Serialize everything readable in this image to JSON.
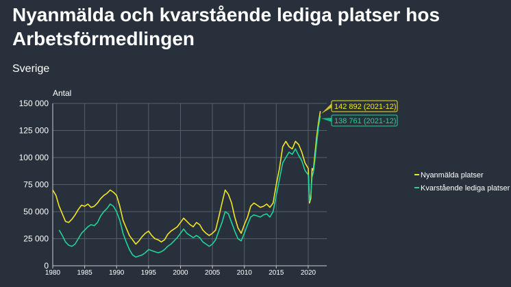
{
  "chart_data": {
    "type": "line",
    "title": "Nyanmälda och kvarstående lediga platser hos Arbetsförmedlingen",
    "subtitle": "Sverige",
    "ylabel": "Antal",
    "xlabel": "",
    "xlim": [
      1980,
      2022.9
    ],
    "ylim": [
      0,
      150000
    ],
    "yticks": [
      0,
      25000,
      50000,
      75000,
      100000,
      125000,
      150000
    ],
    "ytick_labels": [
      "0",
      "25 000",
      "50 000",
      "75 000",
      "100 000",
      "125 000",
      "150 000"
    ],
    "xticks": [
      1980,
      1985,
      1990,
      1995,
      2000,
      2005,
      2010,
      2015,
      2020
    ],
    "xtick_labels": [
      "1980",
      "1985",
      "1990",
      "1995",
      "2000",
      "2005",
      "2010",
      "2015",
      "2020"
    ],
    "grid": true,
    "legend_position": "right",
    "series": [
      {
        "name": "Nyanmälda platser",
        "color": "#f5e625",
        "end_label": "142 892 (2021-12)",
        "x": [
          1980,
          1980.5,
          1981,
          1981.5,
          1982,
          1982.5,
          1983,
          1983.5,
          1984,
          1984.5,
          1985,
          1985.5,
          1986,
          1986.5,
          1987,
          1987.5,
          1988,
          1988.5,
          1989,
          1989.5,
          1990,
          1990.5,
          1991,
          1991.5,
          1992,
          1992.5,
          1993,
          1993.5,
          1994,
          1994.5,
          1995,
          1995.5,
          1996,
          1996.5,
          1997,
          1997.5,
          1998,
          1998.5,
          1999,
          1999.5,
          2000,
          2000.5,
          2001,
          2001.5,
          2002,
          2002.5,
          2003,
          2003.5,
          2004,
          2004.5,
          2005,
          2005.5,
          2006,
          2006.5,
          2007,
          2007.5,
          2008,
          2008.5,
          2009,
          2009.5,
          2010,
          2010.5,
          2011,
          2011.5,
          2012,
          2012.5,
          2013,
          2013.5,
          2014,
          2014.5,
          2015,
          2015.5,
          2016,
          2016.5,
          2017,
          2017.5,
          2018,
          2018.5,
          2019,
          2019.5,
          2020,
          2020.2,
          2020.4,
          2020.6,
          2020.8,
          2021,
          2021.3,
          2021.6,
          2021.9
        ],
        "y": [
          70000,
          65000,
          55000,
          48000,
          41000,
          40000,
          43000,
          47000,
          52000,
          56000,
          55000,
          57000,
          54000,
          55000,
          58000,
          62000,
          65000,
          67000,
          70000,
          68000,
          65000,
          55000,
          42000,
          35000,
          28000,
          24000,
          20000,
          23000,
          27000,
          30000,
          32000,
          28000,
          25000,
          24000,
          22000,
          24000,
          29000,
          32000,
          34000,
          36000,
          40000,
          44000,
          41000,
          38000,
          36000,
          40000,
          38000,
          33000,
          30000,
          28000,
          30000,
          33000,
          45000,
          58000,
          70000,
          66000,
          58000,
          45000,
          35000,
          30000,
          38000,
          45000,
          55000,
          58000,
          56000,
          54000,
          55000,
          57000,
          54000,
          58000,
          75000,
          90000,
          110000,
          115000,
          110000,
          108000,
          115000,
          112000,
          105000,
          95000,
          90000,
          58000,
          62000,
          90000,
          88000,
          100000,
          118000,
          132000,
          142892
        ]
      },
      {
        "name": "Kvarstående lediga platser",
        "color": "#1fd69a",
        "end_label": "138 761 (2021-12)",
        "x": [
          1981,
          1981.5,
          1982,
          1982.5,
          1983,
          1983.5,
          1984,
          1984.5,
          1985,
          1985.5,
          1986,
          1986.5,
          1987,
          1987.5,
          1988,
          1988.5,
          1989,
          1989.5,
          1990,
          1990.5,
          1991,
          1991.5,
          1992,
          1992.5,
          1993,
          1993.5,
          1994,
          1994.5,
          1995,
          1995.5,
          1996,
          1996.5,
          1997,
          1997.5,
          1998,
          1998.5,
          1999,
          1999.5,
          2000,
          2000.5,
          2001,
          2001.5,
          2002,
          2002.5,
          2003,
          2003.5,
          2004,
          2004.5,
          2005,
          2005.5,
          2006,
          2006.5,
          2007,
          2007.5,
          2008,
          2008.5,
          2009,
          2009.5,
          2010,
          2010.5,
          2011,
          2011.5,
          2012,
          2012.5,
          2013,
          2013.5,
          2014,
          2014.5,
          2015,
          2015.5,
          2016,
          2016.5,
          2017,
          2017.5,
          2018,
          2018.5,
          2019,
          2019.5,
          2020,
          2020.2,
          2020.4,
          2020.6,
          2020.8,
          2021,
          2021.3,
          2021.6,
          2021.9
        ],
        "y": [
          33000,
          28000,
          22000,
          19000,
          18000,
          20000,
          25000,
          30000,
          33000,
          36000,
          38000,
          37000,
          40000,
          46000,
          50000,
          53000,
          57000,
          55000,
          50000,
          42000,
          30000,
          22000,
          15000,
          10000,
          8000,
          9000,
          10000,
          12000,
          15000,
          14000,
          13000,
          12000,
          13000,
          15000,
          18000,
          20000,
          23000,
          26000,
          30000,
          34000,
          30000,
          28000,
          26000,
          28000,
          26000,
          22000,
          20000,
          18000,
          20000,
          24000,
          32000,
          40000,
          50000,
          48000,
          40000,
          32000,
          25000,
          23000,
          30000,
          38000,
          45000,
          47000,
          46000,
          45000,
          47000,
          48000,
          45000,
          50000,
          65000,
          80000,
          95000,
          100000,
          105000,
          103000,
          108000,
          102000,
          97000,
          88000,
          84000,
          60000,
          66000,
          82000,
          86000,
          95000,
          112000,
          128000,
          138761
        ]
      }
    ]
  }
}
